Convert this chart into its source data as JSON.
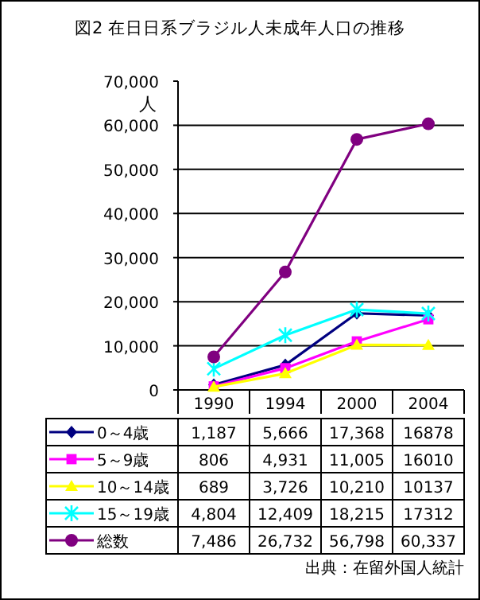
{
  "chart_data": {
    "type": "line",
    "title": "図2 在日日系ブラジル人未成年人口の推移",
    "ylabel": "人",
    "categories": [
      "1990",
      "1994",
      "2000",
      "2004"
    ],
    "ylim": [
      0,
      70000
    ],
    "yticks": [
      {
        "value": 0,
        "label": "0"
      },
      {
        "value": 10000,
        "label": "10,000"
      },
      {
        "value": 20000,
        "label": "20,000"
      },
      {
        "value": 30000,
        "label": "30,000"
      },
      {
        "value": 40000,
        "label": "40,000"
      },
      {
        "value": 50000,
        "label": "50,000"
      },
      {
        "value": 60000,
        "label": "60,000"
      },
      {
        "value": 70000,
        "label": "70,000"
      }
    ],
    "grid": "y",
    "legend": "bottom",
    "series": [
      {
        "name": "0～4歳",
        "color": "#000080",
        "marker": "diamond",
        "values": [
          1187,
          5666,
          17368,
          16878
        ],
        "value_labels": [
          "1,187",
          "5,666",
          "17,368",
          "16878"
        ]
      },
      {
        "name": "5～9歳",
        "color": "#ff00ff",
        "marker": "square",
        "values": [
          806,
          4931,
          11005,
          16010
        ],
        "value_labels": [
          "806",
          "4,931",
          "11,005",
          "16010"
        ]
      },
      {
        "name": "10～14歳",
        "color": "#ffff00",
        "marker": "triangle",
        "values": [
          689,
          3726,
          10210,
          10137
        ],
        "value_labels": [
          "689",
          "3,726",
          "10,210",
          "10137"
        ]
      },
      {
        "name": "15～19歳",
        "color": "#00ffff",
        "marker": "cross",
        "values": [
          4804,
          12409,
          18215,
          17312
        ],
        "value_labels": [
          "4,804",
          "12,409",
          "18,215",
          "17312"
        ]
      },
      {
        "name": "総数",
        "color": "#800080",
        "marker": "circle",
        "values": [
          7486,
          26732,
          56798,
          60337
        ],
        "value_labels": [
          "7,486",
          "26,732",
          "56,798",
          "60,337"
        ]
      }
    ],
    "annotations": [
      "出典：在留外国人統計"
    ]
  }
}
